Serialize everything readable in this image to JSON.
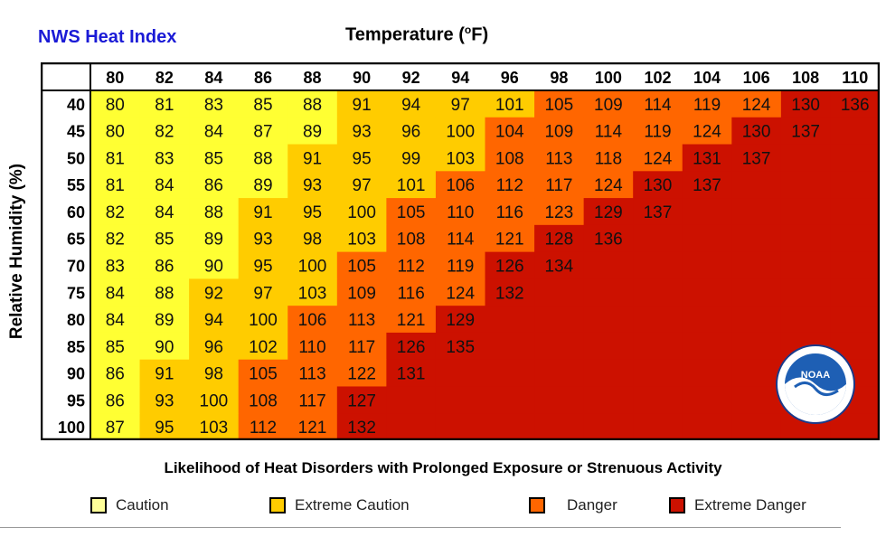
{
  "chart_data": {
    "type": "heatmap",
    "title": "NWS Heat Index",
    "xlabel": "Temperature (°F)",
    "xlabel_main": "Temperature (",
    "xlabel_deg": "o",
    "xlabel_unit": "F)",
    "ylabel": "Relative Humidity (%)",
    "x": [
      80,
      82,
      84,
      86,
      88,
      90,
      92,
      94,
      96,
      98,
      100,
      102,
      104,
      106,
      108,
      110
    ],
    "y": [
      40,
      45,
      50,
      55,
      60,
      65,
      70,
      75,
      80,
      85,
      90,
      95,
      100
    ],
    "values": [
      [
        80,
        81,
        83,
        85,
        88,
        91,
        94,
        97,
        101,
        105,
        109,
        114,
        119,
        124,
        130,
        136
      ],
      [
        80,
        82,
        84,
        87,
        89,
        93,
        96,
        100,
        104,
        109,
        114,
        119,
        124,
        130,
        137,
        null
      ],
      [
        81,
        83,
        85,
        88,
        91,
        95,
        99,
        103,
        108,
        113,
        118,
        124,
        131,
        137,
        null,
        null
      ],
      [
        81,
        84,
        86,
        89,
        93,
        97,
        101,
        106,
        112,
        117,
        124,
        130,
        137,
        null,
        null,
        null
      ],
      [
        82,
        84,
        88,
        91,
        95,
        100,
        105,
        110,
        116,
        123,
        129,
        137,
        null,
        null,
        null,
        null
      ],
      [
        82,
        85,
        89,
        93,
        98,
        103,
        108,
        114,
        121,
        128,
        136,
        null,
        null,
        null,
        null,
        null
      ],
      [
        83,
        86,
        90,
        95,
        100,
        105,
        112,
        119,
        126,
        134,
        null,
        null,
        null,
        null,
        null,
        null
      ],
      [
        84,
        88,
        92,
        97,
        103,
        109,
        116,
        124,
        132,
        null,
        null,
        null,
        null,
        null,
        null,
        null
      ],
      [
        84,
        89,
        94,
        100,
        106,
        113,
        121,
        129,
        null,
        null,
        null,
        null,
        null,
        null,
        null,
        null
      ],
      [
        85,
        90,
        96,
        102,
        110,
        117,
        126,
        135,
        null,
        null,
        null,
        null,
        null,
        null,
        null,
        null
      ],
      [
        86,
        91,
        98,
        105,
        113,
        122,
        131,
        null,
        null,
        null,
        null,
        null,
        null,
        null,
        null,
        null
      ],
      [
        86,
        93,
        100,
        108,
        117,
        127,
        null,
        null,
        null,
        null,
        null,
        null,
        null,
        null,
        null,
        null
      ],
      [
        87,
        95,
        103,
        112,
        121,
        132,
        null,
        null,
        null,
        null,
        null,
        null,
        null,
        null,
        null,
        null
      ]
    ],
    "categories_legend": [
      {
        "name": "Caution",
        "color": "#ffff33",
        "min": 80,
        "max": 90
      },
      {
        "name": "Extreme Caution",
        "color": "#ffcc00",
        "min": 91,
        "max": 103
      },
      {
        "name": "Danger",
        "color": "#ff6600",
        "min": 104,
        "max": 124
      },
      {
        "name": "Extreme Danger",
        "color": "#cc1100",
        "min": 125,
        "max": 999
      }
    ],
    "legend_placement": "bottom",
    "grid": false
  },
  "footnote": "Likelihood of Heat Disorders with Prolonged Exposure or Strenuous Activity",
  "logo": {
    "name": "noaa-logo",
    "text": "NOAA"
  }
}
